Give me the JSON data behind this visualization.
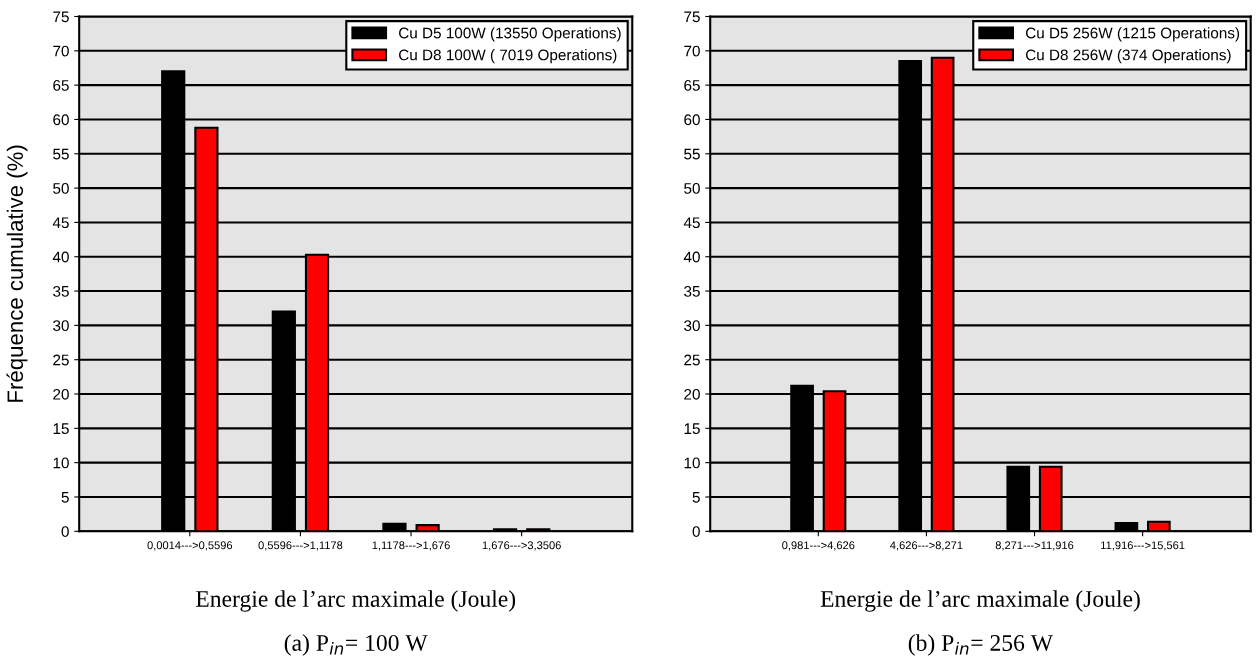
{
  "chart_data": [
    {
      "type": "bar",
      "categories": [
        "0,0014--->0,5596",
        "0,5596--->1,1178",
        "1,1178--->1,676",
        "1,676--->3,3506"
      ],
      "series": [
        {
          "name": "Cu D5 100W (13550 Operations)",
          "color": "#000000",
          "values": [
            67.0,
            32.0,
            1.1,
            0.3
          ]
        },
        {
          "name": "Cu D8 100W ( 7019 Operations)",
          "color": "#ff0000",
          "values": [
            58.8,
            40.3,
            0.9,
            0.3
          ]
        }
      ],
      "ylim": [
        0,
        75
      ],
      "yticks": [
        0,
        5,
        10,
        15,
        20,
        25,
        30,
        35,
        40,
        45,
        50,
        55,
        60,
        65,
        70,
        75
      ],
      "ylabel": "Fréquence cumulative (%)",
      "xlabel": "Energie de l’arc maximale (Joule)",
      "annotations": [
        "(a) P$_{in}$= 100 W"
      ],
      "grid": "y",
      "legend": "top right"
    },
    {
      "type": "bar",
      "categories": [
        "0,981--->4,626",
        "4,626--->8,271",
        "8,271--->11,916",
        "11,916--->15,561"
      ],
      "series": [
        {
          "name": "Cu D5 256W (1215 Operations)",
          "color": "#000000",
          "values": [
            21.2,
            68.5,
            9.4,
            1.2
          ]
        },
        {
          "name": "Cu D8 256W (374 Operations)",
          "color": "#ff0000",
          "values": [
            20.4,
            69.0,
            9.4,
            1.4
          ]
        }
      ],
      "ylim": [
        0,
        75
      ],
      "yticks": [
        0,
        5,
        10,
        15,
        20,
        25,
        30,
        35,
        40,
        45,
        50,
        55,
        60,
        65,
        70,
        75
      ],
      "xlabel": "Energie de l’arc maximale (Joule)",
      "annotations": [
        "(b) P$_{in}$= 256 W"
      ],
      "grid": "y",
      "legend": "top right"
    }
  ]
}
